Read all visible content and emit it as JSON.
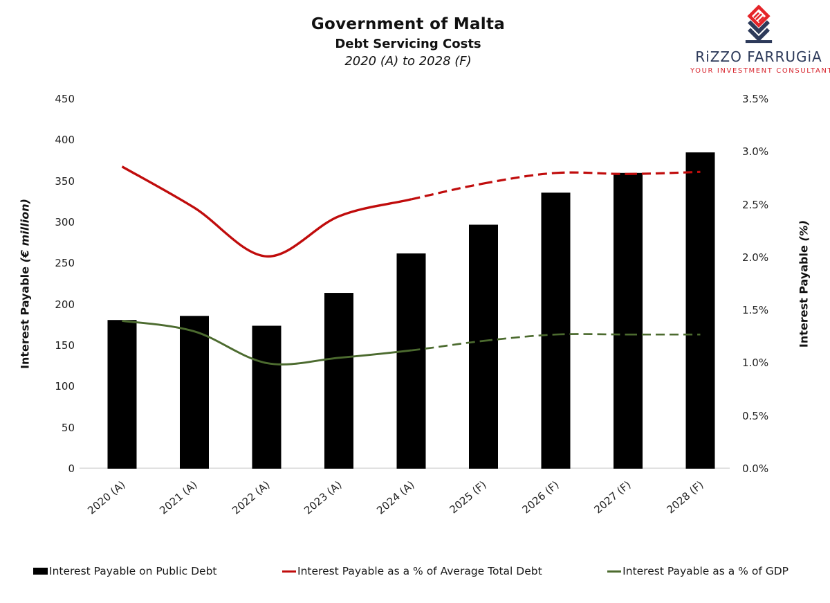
{
  "header": {
    "title": "Government of Malta",
    "subtitle": "Debt Servicing Costs",
    "period": "2020 (A) to 2028 (F)"
  },
  "logo": {
    "name": "RiZZO FARRUGiA",
    "tagline": "YOUR INVESTMENT CONSULTANTS",
    "navy": "#2d3a5a",
    "red": "#d7222b"
  },
  "chart_data": {
    "type": "combo bar+line, dual axis",
    "categories": [
      "2020 (A)",
      "2021 (A)",
      "2022 (A)",
      "2023 (A)",
      "2024 (A)",
      "2025 (F)",
      "2026 (F)",
      "2027 (F)",
      "2028 (F)"
    ],
    "series": [
      {
        "name": "Interest Payable on Public Debt",
        "type": "bar",
        "axis": "left",
        "unit": "€ million",
        "color": "#000000",
        "values": [
          181,
          186,
          174,
          214,
          262,
          297,
          336,
          360,
          385
        ]
      },
      {
        "name": "Interest Payable as a % of Average Total Debt",
        "type": "line",
        "axis": "right",
        "unit": "%",
        "color": "#c00c0c",
        "line_style": "solid for actuals, dashed from 2024 (A) onward (forecast)",
        "solid_until_index": 4,
        "values": [
          2.86,
          2.47,
          2.01,
          2.39,
          2.55,
          2.7,
          2.8,
          2.79,
          2.81
        ]
      },
      {
        "name": "Interest Payable as a % of GDP",
        "type": "line",
        "axis": "right",
        "unit": "%",
        "color": "#4c6b2f",
        "line_style": "solid for actuals, dashed from 2024 (A) onward (forecast)",
        "solid_until_index": 4,
        "values": [
          1.4,
          1.3,
          1.0,
          1.05,
          1.12,
          1.21,
          1.27,
          1.27,
          1.27
        ]
      }
    ],
    "left_axis": {
      "title": "Interest Payable",
      "title_unit": "(€ million)",
      "min": 0,
      "max": 450,
      "step": 50,
      "ticks": [
        "450",
        "400",
        "350",
        "300",
        "250",
        "200",
        "150",
        "100",
        "50",
        "0"
      ]
    },
    "right_axis": {
      "title": "Interest Payable",
      "title_unit": "(%)",
      "min": 0,
      "max": 3.5,
      "step": 0.5,
      "ticks": [
        "3.5%",
        "3.0%",
        "2.5%",
        "2.0%",
        "1.5%",
        "1.0%",
        "0.5%",
        "0.0%"
      ]
    },
    "grid": "none",
    "legend_position": "bottom"
  },
  "legend": {
    "items": [
      {
        "label": "Interest Payable on Public Debt",
        "swatch": "black-bar"
      },
      {
        "label": "Interest Payable as a % of Average Total Debt",
        "swatch": "red-line"
      },
      {
        "label": "Interest Payable as a % of GDP",
        "swatch": "green-line"
      }
    ]
  }
}
